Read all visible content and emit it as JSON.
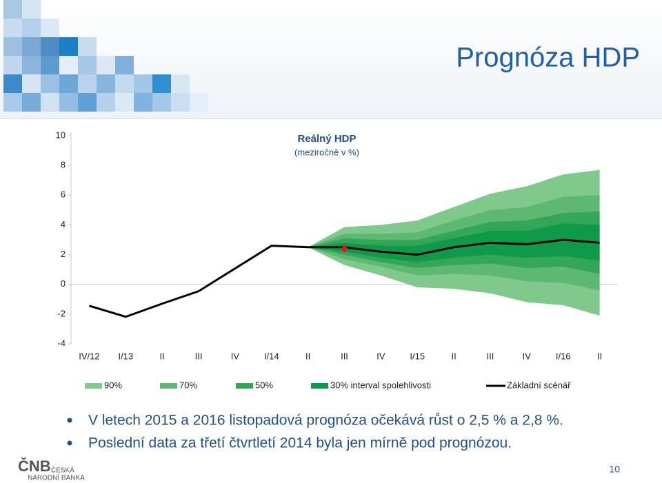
{
  "header": {
    "title": "Prognóza HDP"
  },
  "chart_data": {
    "type": "fan",
    "title": "Reálný HDP",
    "subtitle": "(meziročně v %)",
    "categories": [
      "IV/12",
      "I/13",
      "II",
      "III",
      "IV",
      "I/14",
      "II",
      "III",
      "IV",
      "I/15",
      "II",
      "III",
      "IV",
      "I/16",
      "II"
    ],
    "ylim": [
      -4,
      10
    ],
    "yticks": [
      -4,
      -2,
      0,
      2,
      4,
      6,
      8,
      10
    ],
    "bands": [
      {
        "name": "90%",
        "color": "#80c98d",
        "upper": [
          null,
          null,
          null,
          null,
          null,
          null,
          2.5,
          3.85,
          4.0,
          4.3,
          5.2,
          6.1,
          6.6,
          7.4,
          7.7
        ],
        "lower": [
          null,
          null,
          null,
          null,
          null,
          null,
          2.5,
          1.3,
          0.6,
          -0.2,
          -0.3,
          -0.6,
          -1.2,
          -1.4,
          -2.1
        ]
      },
      {
        "name": "70%",
        "color": "#5db872",
        "upper": [
          null,
          null,
          null,
          null,
          null,
          null,
          2.5,
          3.4,
          3.4,
          3.5,
          4.3,
          5.0,
          5.2,
          5.9,
          6.0
        ],
        "lower": [
          null,
          null,
          null,
          null,
          null,
          null,
          2.5,
          1.7,
          1.2,
          0.6,
          0.7,
          0.6,
          0.2,
          0.1,
          -0.4
        ]
      },
      {
        "name": "50%",
        "color": "#34a65a",
        "upper": [
          null,
          null,
          null,
          null,
          null,
          null,
          2.5,
          3.1,
          3.0,
          3.0,
          3.6,
          4.2,
          4.3,
          4.8,
          4.9
        ],
        "lower": [
          null,
          null,
          null,
          null,
          null,
          null,
          2.5,
          2.0,
          1.5,
          1.1,
          1.3,
          1.4,
          1.1,
          1.2,
          0.7
        ]
      },
      {
        "name": "30% interval spolehlivosti",
        "color": "#0e9a48",
        "upper": [
          null,
          null,
          null,
          null,
          null,
          null,
          2.5,
          2.8,
          2.6,
          2.6,
          3.1,
          3.6,
          3.6,
          4.1,
          4.0
        ],
        "lower": [
          null,
          null,
          null,
          null,
          null,
          null,
          2.5,
          2.2,
          1.8,
          1.5,
          1.8,
          2.0,
          1.8,
          1.9,
          1.6
        ]
      }
    ],
    "series": [
      {
        "name": "Základní scénář",
        "color": "#000000",
        "values": [
          -1.44,
          -2.18,
          -1.3,
          -0.46,
          1.07,
          2.6,
          2.5,
          2.5,
          2.2,
          2.0,
          2.5,
          2.8,
          2.7,
          3.0,
          2.8
        ]
      }
    ],
    "highlight": {
      "color": "#e8141c",
      "values": [
        null,
        null,
        null,
        null,
        null,
        null,
        null,
        2.4,
        null,
        null,
        null,
        null,
        null,
        null,
        null
      ]
    }
  },
  "bullets": [
    "V letech 2015 a 2016 listopadová prognóza očekává růst o 2,5 % a 2,8 %.",
    "Poslední data za třetí čtvrtletí 2014 byla jen mírně pod prognózou."
  ],
  "footer": {
    "logo": "ČNB",
    "name_lines": [
      "ČESKÁ",
      "NÁRODNÍ BANKA"
    ],
    "page_number": "10"
  }
}
